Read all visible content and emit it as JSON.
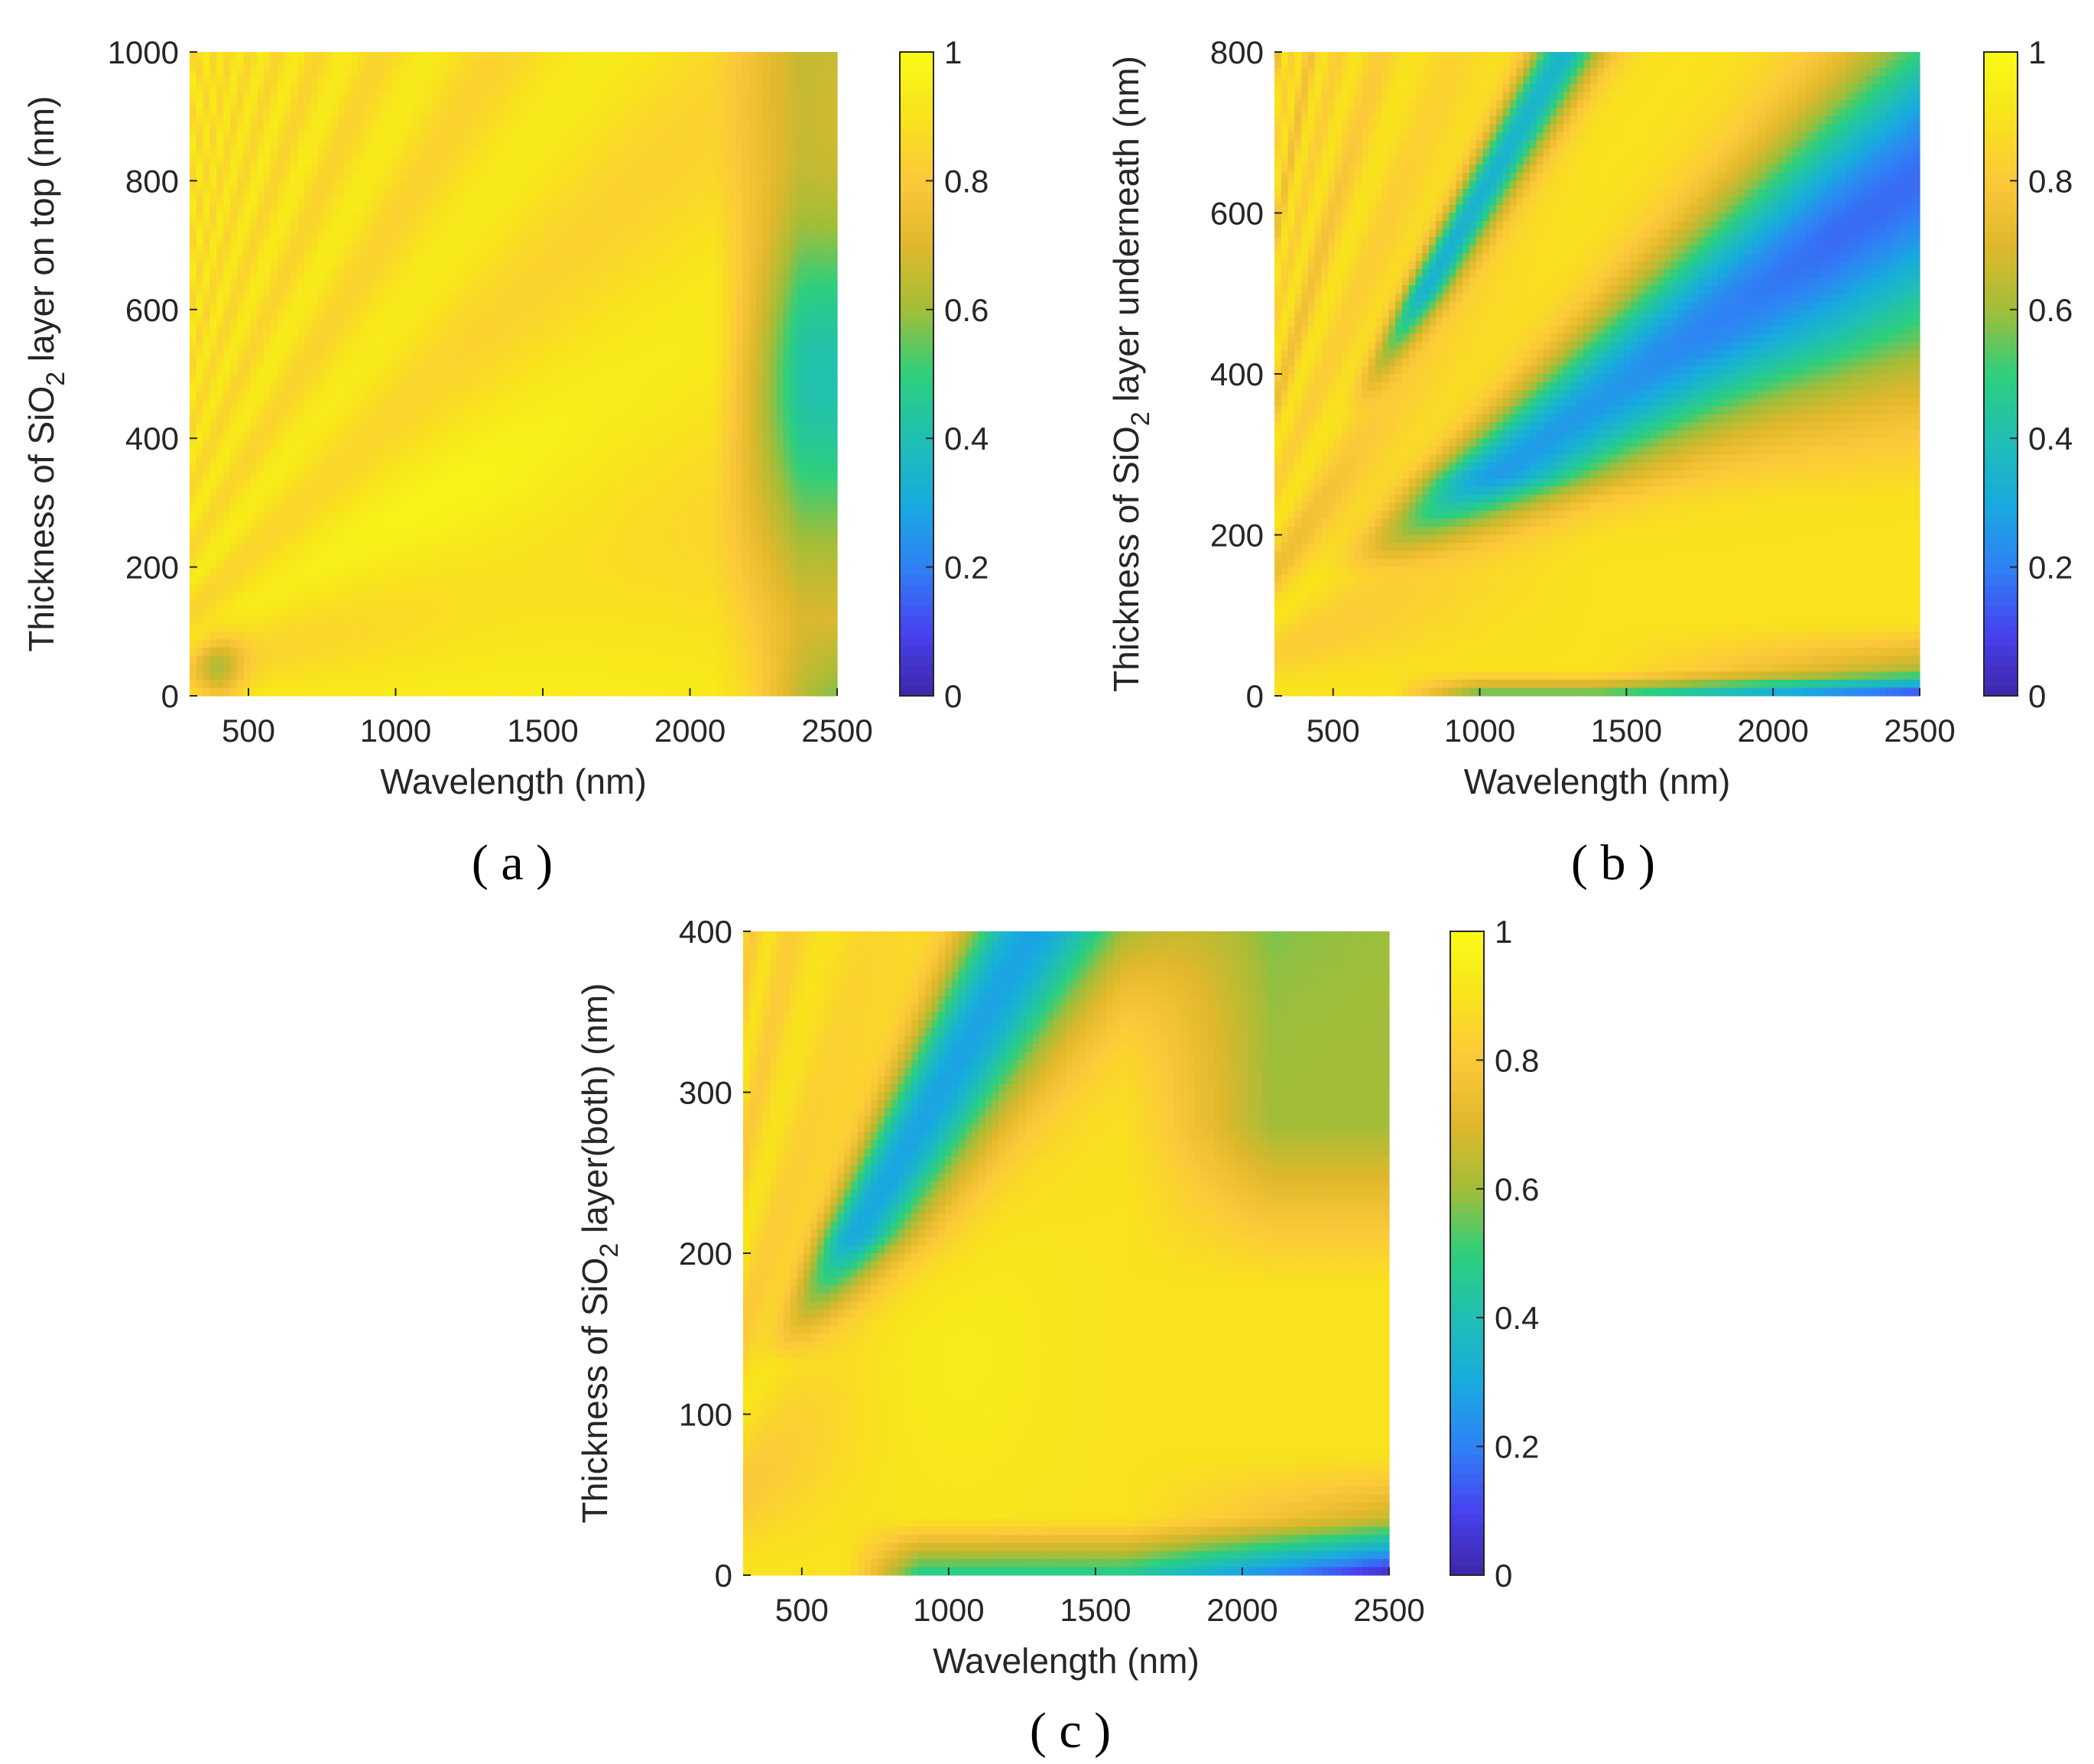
{
  "colormap": [
    "#3e26a8",
    "#4743f0",
    "#2f82f5",
    "#18abde",
    "#1fbfb4",
    "#2ecf7c",
    "#a3bd38",
    "#e0b82c",
    "#fcc93a",
    "#f8e31d",
    "#f9fb14"
  ],
  "chart_data": [
    {
      "type": "heatmap",
      "panel": "a",
      "panel_label": "( a )",
      "xlabel": "Wavelength (nm)",
      "ylabel_prefix": "Thickness of SiO",
      "ylabel_sub": "2",
      "ylabel_suffix": " layer on top (nm)",
      "xlim": [
        300,
        2500
      ],
      "ylim": [
        0,
        1000
      ],
      "xticks": [
        500,
        1000,
        1500,
        2000,
        2500
      ],
      "yticks": [
        0,
        200,
        400,
        600,
        800,
        1000
      ],
      "clim": [
        0,
        1
      ],
      "colorbar_ticks": [
        0,
        0.2,
        0.4,
        0.6,
        0.8,
        1
      ],
      "colorbar_labels": [
        "0",
        "0.2",
        "0.4",
        "0.6",
        "0.8",
        "1"
      ],
      "model": "top"
    },
    {
      "type": "heatmap",
      "panel": "b",
      "panel_label": "( b )",
      "xlabel": "Wavelength (nm)",
      "ylabel_prefix": "Thickness of SiO",
      "ylabel_sub": "2",
      "ylabel_suffix": " layer underneath (nm)",
      "xlim": [
        300,
        2500
      ],
      "ylim": [
        0,
        800
      ],
      "xticks": [
        500,
        1000,
        1500,
        2000,
        2500
      ],
      "yticks": [
        0,
        200,
        400,
        600,
        800
      ],
      "clim": [
        0,
        1
      ],
      "colorbar_ticks": [
        0,
        0.2,
        0.4,
        0.6,
        0.8,
        1
      ],
      "colorbar_labels": [
        "0",
        "0.2",
        "0.4",
        "0.6",
        "0.8",
        "1"
      ],
      "model": "under"
    },
    {
      "type": "heatmap",
      "panel": "c",
      "panel_label": "( c )",
      "xlabel": "Wavelength (nm)",
      "ylabel_prefix": "Thickness of SiO",
      "ylabel_sub": "2",
      "ylabel_suffix": " layer(both) (nm)",
      "xlim": [
        300,
        2500
      ],
      "ylim": [
        0,
        400
      ],
      "xticks": [
        500,
        1000,
        1500,
        2000,
        2500
      ],
      "yticks": [
        0,
        100,
        200,
        300,
        400
      ],
      "clim": [
        0,
        1
      ],
      "colorbar_ticks": [
        0,
        0.2,
        0.4,
        0.6,
        0.8,
        1
      ],
      "colorbar_labels": [
        "0",
        "0.2",
        "0.4",
        "0.6",
        "0.8",
        "1"
      ],
      "model": "both"
    }
  ]
}
